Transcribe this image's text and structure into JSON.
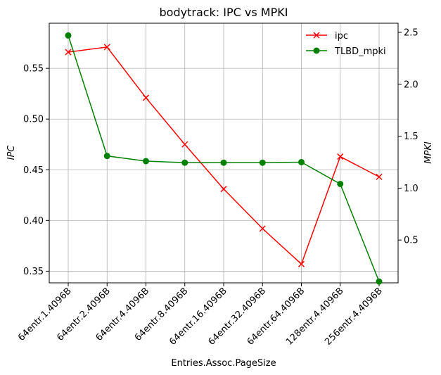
{
  "chart_data": {
    "type": "line",
    "title": "bodytrack: IPC vs MPKI",
    "xlabel": "Entries.Assoc.PageSize",
    "ylabel_left": "IPC",
    "ylabel_right": "MPKI",
    "categories": [
      "64entr.1.4096B",
      "64entr.2.4096B",
      "64entr.4.4096B",
      "64entr.8.4096B",
      "64entr.16.4096B",
      "64entr.32.4096B",
      "64entr.64.4096B",
      "128entr.4.4096B",
      "256entr.4.4096B"
    ],
    "ylim_left": [
      0.3385,
      0.5945
    ],
    "ylim_right": [
      0.088,
      2.588
    ],
    "yticks_left": [
      "0.35",
      "0.40",
      "0.45",
      "0.50",
      "0.55"
    ],
    "yticks_right": [
      "0.5",
      "1.0",
      "1.5",
      "2.0",
      "2.5"
    ],
    "grid": true,
    "legend_position": "upper right",
    "series": [
      {
        "name": "ipc",
        "axis": "left",
        "color": "#ff0000",
        "marker": "x",
        "values": [
          0.566,
          0.571,
          0.521,
          0.475,
          0.431,
          0.392,
          0.357,
          0.463,
          0.443
        ]
      },
      {
        "name": "TLBD_mpki",
        "axis": "right",
        "color": "#008000",
        "marker": "o",
        "values": [
          2.47,
          1.31,
          1.26,
          1.245,
          1.245,
          1.245,
          1.25,
          1.04,
          0.1
        ]
      }
    ]
  }
}
